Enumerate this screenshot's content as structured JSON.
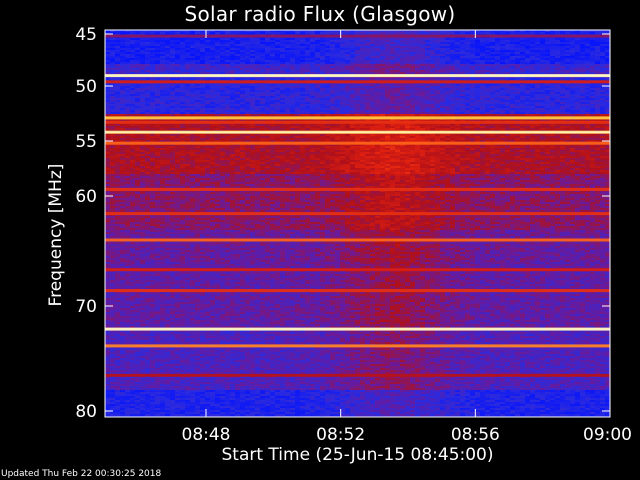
{
  "chart_data": {
    "type": "heatmap",
    "title": "Solar radio Flux (Glasgow)",
    "xlabel": "Start Time (25-Jun-15 08:45:00)",
    "ylabel": "Frequency [MHz]",
    "x_range": [
      "08:45",
      "09:00"
    ],
    "x_ticks": [
      "08:48",
      "08:52",
      "08:56",
      "09:00"
    ],
    "x_tick_minutes": [
      48,
      52,
      56,
      60
    ],
    "y_range": [
      45,
      80
    ],
    "y_ticks": [
      45,
      50,
      55,
      60,
      70,
      80
    ],
    "colormap": [
      "#0010ff",
      "#2a2ae0",
      "#6a1a9a",
      "#b0101a",
      "#e02010",
      "#ff6a1a",
      "#ffd040",
      "#fff6c0"
    ],
    "emission_bands_mhz": [
      {
        "f": 45.2,
        "level": 0.35
      },
      {
        "f": 49.0,
        "level": 1.0
      },
      {
        "f": 49.6,
        "level": 0.55
      },
      {
        "f": 52.9,
        "level": 0.85
      },
      {
        "f": 53.3,
        "level": 0.6
      },
      {
        "f": 54.2,
        "level": 0.92
      },
      {
        "f": 55.2,
        "level": 0.7
      },
      {
        "f": 59.4,
        "level": 0.6
      },
      {
        "f": 61.6,
        "level": 0.6
      },
      {
        "f": 64.0,
        "level": 0.7
      },
      {
        "f": 66.7,
        "level": 0.55
      },
      {
        "f": 68.6,
        "level": 0.6
      },
      {
        "f": 72.2,
        "level": 1.0
      },
      {
        "f": 73.8,
        "level": 0.75
      },
      {
        "f": 76.6,
        "level": 0.45
      }
    ],
    "grid": false,
    "legend": "none"
  },
  "footer": "Updated Thu Feb 22 00:30:25 2018"
}
